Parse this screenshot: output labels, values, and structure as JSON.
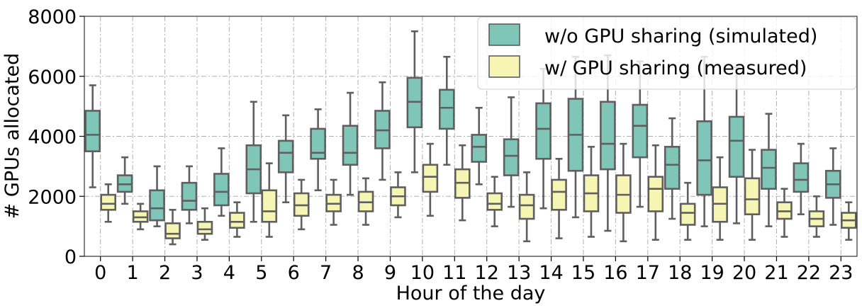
{
  "chart_data": {
    "type": "box",
    "xlabel": "Hour of the day",
    "ylabel": "# GPUs allocated",
    "ylim": [
      0,
      8000
    ],
    "yticks": [
      0,
      2000,
      4000,
      6000,
      8000
    ],
    "categories": [
      "0",
      "1",
      "2",
      "3",
      "4",
      "5",
      "6",
      "7",
      "8",
      "9",
      "10",
      "11",
      "12",
      "13",
      "14",
      "15",
      "16",
      "17",
      "18",
      "19",
      "20",
      "21",
      "22",
      "23"
    ],
    "grid": true,
    "legend_position": "top-right",
    "series": [
      {
        "name": "w/o GPU sharing (simulated)",
        "color": "#7fc6b8",
        "boxes": [
          {
            "whislo": 2300,
            "q1": 3500,
            "med": 4050,
            "q3": 4850,
            "whishi": 5700
          },
          {
            "whislo": 1750,
            "q1": 2150,
            "med": 2400,
            "q3": 2700,
            "whishi": 3300
          },
          {
            "whislo": 1000,
            "q1": 1200,
            "med": 1600,
            "q3": 2200,
            "whishi": 3000
          },
          {
            "whislo": 1100,
            "q1": 1550,
            "med": 1850,
            "q3": 2450,
            "whishi": 3000
          },
          {
            "whislo": 1350,
            "q1": 1700,
            "med": 2150,
            "q3": 2750,
            "whishi": 3600
          },
          {
            "whislo": 1150,
            "q1": 2100,
            "med": 2900,
            "q3": 3700,
            "whishi": 5150
          },
          {
            "whislo": 1800,
            "q1": 2800,
            "med": 3450,
            "q3": 3850,
            "whishi": 4700
          },
          {
            "whislo": 2200,
            "q1": 3250,
            "med": 3450,
            "q3": 4250,
            "whishi": 4900
          },
          {
            "whislo": 2050,
            "q1": 3050,
            "med": 3450,
            "q3": 4350,
            "whishi": 5450
          },
          {
            "whislo": 2550,
            "q1": 3600,
            "med": 4200,
            "q3": 4850,
            "whishi": 5800
          },
          {
            "whislo": 2800,
            "q1": 4300,
            "med": 5150,
            "q3": 5950,
            "whishi": 7500
          },
          {
            "whislo": 3050,
            "q1": 4250,
            "med": 4950,
            "q3": 5550,
            "whishi": 6650
          },
          {
            "whislo": 2400,
            "q1": 3150,
            "med": 3650,
            "q3": 4050,
            "whishi": 4950
          },
          {
            "whislo": 1650,
            "q1": 2700,
            "med": 3350,
            "q3": 3900,
            "whishi": 5300
          },
          {
            "whislo": 1600,
            "q1": 3250,
            "med": 4250,
            "q3": 5100,
            "whishi": 6250
          },
          {
            "whislo": 1300,
            "q1": 2850,
            "med": 4050,
            "q3": 5250,
            "whishi": 6650
          },
          {
            "whislo": 850,
            "q1": 2900,
            "med": 3750,
            "q3": 5150,
            "whishi": 6700
          },
          {
            "whislo": 1650,
            "q1": 3300,
            "med": 4350,
            "q3": 5050,
            "whishi": 6500
          },
          {
            "whislo": 1250,
            "q1": 2250,
            "med": 3050,
            "q3": 3650,
            "whishi": 4600
          },
          {
            "whislo": 1000,
            "q1": 2050,
            "med": 3200,
            "q3": 4500,
            "whishi": 6650
          },
          {
            "whislo": 1100,
            "q1": 2650,
            "med": 3850,
            "q3": 4650,
            "whishi": 6300
          },
          {
            "whislo": 1000,
            "q1": 2250,
            "med": 2950,
            "q3": 3550,
            "whishi": 4750
          },
          {
            "whislo": 1400,
            "q1": 2150,
            "med": 2550,
            "q3": 3100,
            "whishi": 3750
          },
          {
            "whislo": 1050,
            "q1": 1950,
            "med": 2400,
            "q3": 2850,
            "whishi": 3600
          }
        ]
      },
      {
        "name": "w/ GPU sharing (measured)",
        "color": "#f7f5b4",
        "boxes": [
          {
            "whislo": 1150,
            "q1": 1550,
            "med": 1750,
            "q3": 2050,
            "whishi": 2400
          },
          {
            "whislo": 900,
            "q1": 1150,
            "med": 1300,
            "q3": 1500,
            "whishi": 1750
          },
          {
            "whislo": 400,
            "q1": 600,
            "med": 750,
            "q3": 1100,
            "whishi": 1550
          },
          {
            "whislo": 550,
            "q1": 750,
            "med": 900,
            "q3": 1150,
            "whishi": 1600
          },
          {
            "whislo": 650,
            "q1": 950,
            "med": 1150,
            "q3": 1450,
            "whishi": 1800
          },
          {
            "whislo": 650,
            "q1": 1150,
            "med": 1500,
            "q3": 2200,
            "whishi": 3100
          },
          {
            "whislo": 900,
            "q1": 1350,
            "med": 1700,
            "q3": 2100,
            "whishi": 2550
          },
          {
            "whislo": 1050,
            "q1": 1500,
            "med": 1750,
            "q3": 2050,
            "whishi": 2550
          },
          {
            "whislo": 1050,
            "q1": 1500,
            "med": 1800,
            "q3": 2150,
            "whishi": 2600
          },
          {
            "whislo": 1300,
            "q1": 1700,
            "med": 2000,
            "q3": 2300,
            "whishi": 2800
          },
          {
            "whislo": 1350,
            "q1": 2150,
            "med": 2650,
            "q3": 3050,
            "whishi": 3750
          },
          {
            "whislo": 1200,
            "q1": 1950,
            "med": 2450,
            "q3": 2900,
            "whishi": 3700
          },
          {
            "whislo": 1000,
            "q1": 1550,
            "med": 1750,
            "q3": 2100,
            "whishi": 2650
          },
          {
            "whislo": 500,
            "q1": 1250,
            "med": 1700,
            "q3": 2050,
            "whishi": 2800
          },
          {
            "whislo": 600,
            "q1": 1550,
            "med": 2150,
            "q3": 2550,
            "whishi": 3250
          },
          {
            "whislo": 650,
            "q1": 1500,
            "med": 2100,
            "q3": 2700,
            "whishi": 3650
          },
          {
            "whislo": 500,
            "q1": 1450,
            "med": 2050,
            "q3": 2700,
            "whishi": 3750
          },
          {
            "whislo": 550,
            "q1": 1500,
            "med": 2250,
            "q3": 2650,
            "whishi": 3700
          },
          {
            "whislo": 550,
            "q1": 1050,
            "med": 1450,
            "q3": 1750,
            "whishi": 2450
          },
          {
            "whislo": 550,
            "q1": 1150,
            "med": 1750,
            "q3": 2300,
            "whishi": 3300
          },
          {
            "whislo": 550,
            "q1": 1400,
            "med": 1900,
            "q3": 2600,
            "whishi": 3550
          },
          {
            "whislo": 650,
            "q1": 1250,
            "med": 1500,
            "q3": 1800,
            "whishi": 2250
          },
          {
            "whislo": 650,
            "q1": 1000,
            "med": 1250,
            "q3": 1500,
            "whishi": 2000
          },
          {
            "whislo": 550,
            "q1": 950,
            "med": 1200,
            "q3": 1450,
            "whishi": 1800
          }
        ]
      }
    ]
  }
}
